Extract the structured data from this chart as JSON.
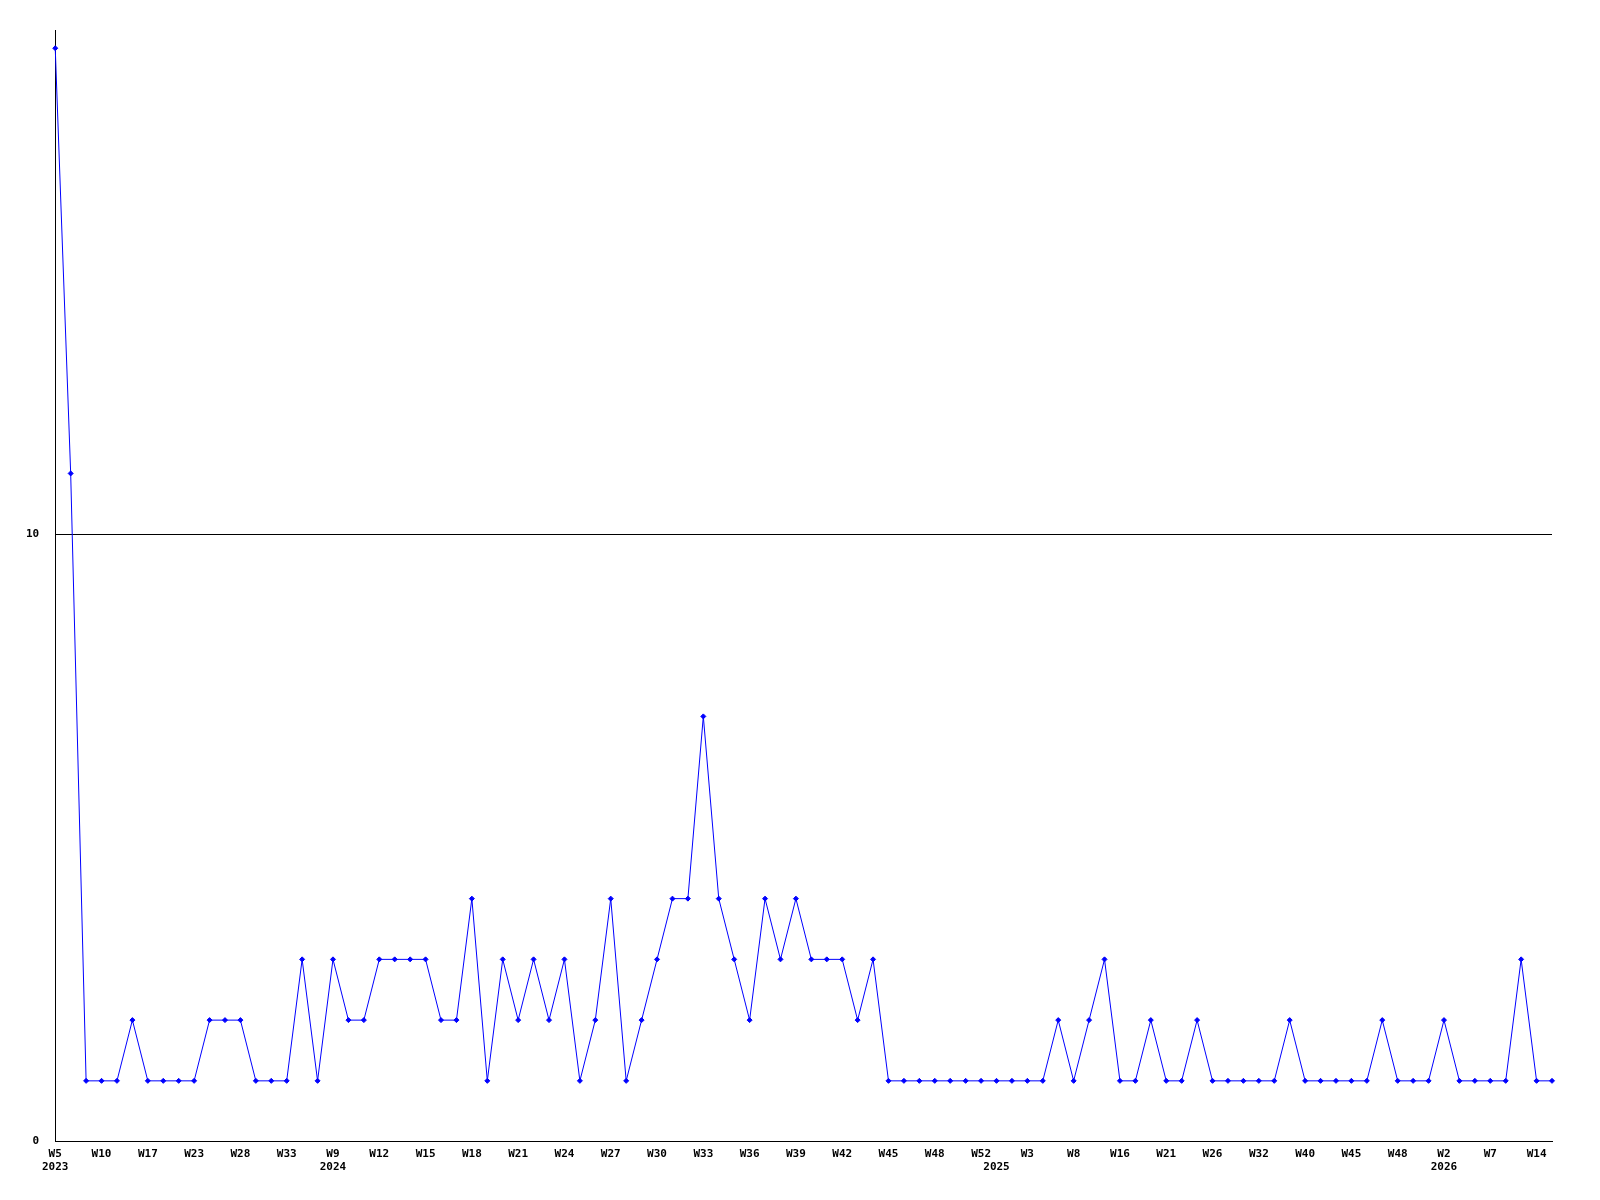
{
  "chart_data": {
    "type": "line",
    "categories": [
      "W5\n2023",
      null,
      null,
      "W10",
      null,
      null,
      "W17",
      null,
      null,
      "W23",
      null,
      null,
      "W28",
      null,
      null,
      "W33",
      null,
      null,
      "W9\n2024",
      null,
      null,
      "W12",
      null,
      null,
      "W15",
      null,
      null,
      "W18",
      null,
      null,
      "W21",
      null,
      null,
      "W24",
      null,
      null,
      "W27",
      null,
      null,
      "W30",
      null,
      null,
      "W33",
      null,
      null,
      "W36",
      null,
      null,
      "W39",
      null,
      null,
      "W42",
      null,
      null,
      "W45",
      null,
      null,
      "W48",
      null,
      null,
      "W52",
      "\n2025",
      null,
      "W3",
      null,
      null,
      "W8",
      null,
      null,
      "W16",
      null,
      null,
      "W21",
      null,
      null,
      "W26",
      null,
      null,
      "W32",
      null,
      null,
      "W40",
      null,
      null,
      "W45",
      null,
      null,
      "W48",
      null,
      null,
      "W2\n2026",
      null,
      null,
      "W7",
      null,
      null,
      "W14",
      null
    ],
    "series": [
      {
        "color": "#0000ff",
        "values": [
          18,
          11,
          1,
          1,
          1,
          2,
          1,
          1,
          1,
          1,
          2,
          2,
          2,
          1,
          1,
          1,
          3,
          1,
          3,
          2,
          2,
          3,
          3,
          3,
          3,
          2,
          2,
          4,
          1,
          3,
          2,
          3,
          2,
          3,
          1,
          2,
          4,
          1,
          2,
          3,
          4,
          4,
          7,
          4,
          3,
          2,
          4,
          3,
          4,
          3,
          3,
          3,
          2,
          3,
          1,
          1,
          1,
          1,
          1,
          1,
          1,
          1,
          1,
          1,
          1,
          2,
          1,
          2,
          3,
          1,
          1,
          2,
          1,
          1,
          2,
          1,
          1,
          1,
          1,
          1,
          2,
          1,
          1,
          1,
          1,
          1,
          2,
          1,
          1,
          1,
          2,
          1,
          1,
          1,
          1,
          3,
          1,
          1
        ]
      }
    ],
    "ylim": [
      0,
      18.3
    ],
    "yticks": [
      0,
      10
    ],
    "grid": "y",
    "legend": false,
    "marker": "diamond",
    "line_style": "solid"
  }
}
